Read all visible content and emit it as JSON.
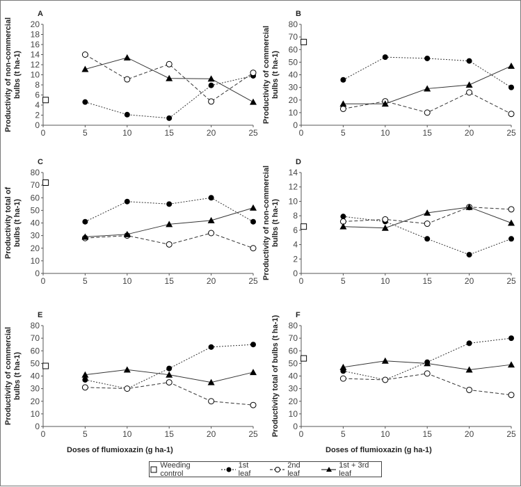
{
  "legend": {
    "control": "Weeding control",
    "s1": "1st leaf",
    "s2": "2nd leaf",
    "s3": "1st + 3rd leaf"
  },
  "xlabel": "Doses of flumioxazin (g ha-1)",
  "chart_data": [
    {
      "type": "line",
      "panel": "A",
      "ylabel": [
        "Productivity of non-commercial",
        "bulbs (t ha-1)"
      ],
      "ylim": [
        0,
        20
      ],
      "yticks": [
        0,
        2,
        4,
        6,
        8,
        10,
        12,
        14,
        16,
        18,
        20
      ],
      "xlim": [
        0,
        25
      ],
      "xticks": [
        0,
        5,
        10,
        15,
        20,
        25
      ],
      "x": [
        5,
        10,
        15,
        20,
        25
      ],
      "control": 5,
      "series": [
        {
          "name": "1st leaf",
          "values": [
            4.6,
            2.1,
            1.4,
            7.9,
            9.8
          ]
        },
        {
          "name": "2nd leaf",
          "values": [
            14,
            9.1,
            12.1,
            4.7,
            10.4
          ]
        },
        {
          "name": "1st + 3rd leaf",
          "values": [
            11.1,
            13.4,
            9.3,
            9.2,
            4.6
          ]
        }
      ]
    },
    {
      "type": "line",
      "panel": "B",
      "ylabel": [
        "Productivity of commercial",
        "bulbs (t ha-1)"
      ],
      "ylim": [
        0,
        80
      ],
      "yticks": [
        0,
        10,
        20,
        30,
        40,
        50,
        60,
        70,
        80
      ],
      "xlim": [
        0,
        25
      ],
      "xticks": [
        0,
        5,
        10,
        15,
        20,
        25
      ],
      "x": [
        5,
        10,
        15,
        20,
        25
      ],
      "control": 66,
      "series": [
        {
          "name": "1st leaf",
          "values": [
            36,
            54,
            53,
            51,
            30
          ]
        },
        {
          "name": "2nd leaf",
          "values": [
            13,
            19,
            10,
            26,
            9
          ]
        },
        {
          "name": "1st + 3rd leaf",
          "values": [
            17,
            17,
            29,
            32,
            47
          ]
        }
      ]
    },
    {
      "type": "line",
      "panel": "C",
      "ylabel": [
        "Productivity total of",
        "bulbs (t ha-1)"
      ],
      "ylim": [
        0,
        80
      ],
      "yticks": [
        0,
        10,
        20,
        30,
        40,
        50,
        60,
        70,
        80
      ],
      "xlim": [
        0,
        25
      ],
      "xticks": [
        0,
        5,
        10,
        15,
        20,
        25
      ],
      "x": [
        5,
        10,
        15,
        20,
        25
      ],
      "control": 72,
      "series": [
        {
          "name": "1st leaf",
          "values": [
            41,
            57,
            55,
            60,
            41
          ]
        },
        {
          "name": "2nd leaf",
          "values": [
            28,
            30,
            23,
            32,
            20
          ]
        },
        {
          "name": "1st + 3rd leaf",
          "values": [
            29,
            31,
            39,
            42,
            52
          ]
        }
      ]
    },
    {
      "type": "line",
      "panel": "D",
      "ylabel": [
        "Productivity of non-commercial",
        "bulbs (t ha-1)"
      ],
      "ylim": [
        0,
        14
      ],
      "yticks": [
        0,
        2,
        4,
        6,
        8,
        10,
        12,
        14
      ],
      "xlim": [
        0,
        25
      ],
      "xticks": [
        0,
        5,
        10,
        15,
        20,
        25
      ],
      "x": [
        5,
        10,
        15,
        20,
        25
      ],
      "control": 6.5,
      "series": [
        {
          "name": "1st leaf",
          "values": [
            7.9,
            7.2,
            4.8,
            2.6,
            4.8
          ]
        },
        {
          "name": "2nd leaf",
          "values": [
            7.2,
            7.5,
            6.9,
            9.2,
            8.9
          ]
        },
        {
          "name": "1st + 3rd leaf",
          "values": [
            6.5,
            6.3,
            8.4,
            9.2,
            7.0
          ]
        }
      ]
    },
    {
      "type": "line",
      "panel": "E",
      "ylabel": [
        "Productivity of commercial",
        "bulbs (t ha-1)"
      ],
      "ylim": [
        0,
        80
      ],
      "yticks": [
        0,
        10,
        20,
        30,
        40,
        50,
        60,
        70,
        80
      ],
      "xlim": [
        0,
        25
      ],
      "xticks": [
        0,
        5,
        10,
        15,
        20,
        25
      ],
      "x": [
        5,
        10,
        15,
        20,
        25
      ],
      "control": 48,
      "series": [
        {
          "name": "1st leaf",
          "values": [
            37,
            30,
            46,
            63,
            65
          ]
        },
        {
          "name": "2nd leaf",
          "values": [
            31,
            30,
            35,
            20,
            17
          ]
        },
        {
          "name": "1st + 3rd leaf",
          "values": [
            41,
            45,
            41,
            35,
            43
          ]
        }
      ]
    },
    {
      "type": "line",
      "panel": "F",
      "ylabel": [
        "Productivity total of bulbs (t ha-1)"
      ],
      "ylim": [
        0,
        80
      ],
      "yticks": [
        0,
        10,
        20,
        30,
        40,
        50,
        60,
        70,
        80
      ],
      "xlim": [
        0,
        25
      ],
      "xticks": [
        0,
        5,
        10,
        15,
        20,
        25
      ],
      "x": [
        5,
        10,
        15,
        20,
        25
      ],
      "control": 54,
      "series": [
        {
          "name": "1st leaf",
          "values": [
            44,
            37,
            51,
            66,
            70
          ]
        },
        {
          "name": "2nd leaf",
          "values": [
            38,
            37,
            42,
            29,
            25
          ]
        },
        {
          "name": "1st + 3rd leaf",
          "values": [
            47,
            52,
            50,
            45,
            49
          ]
        }
      ]
    }
  ]
}
